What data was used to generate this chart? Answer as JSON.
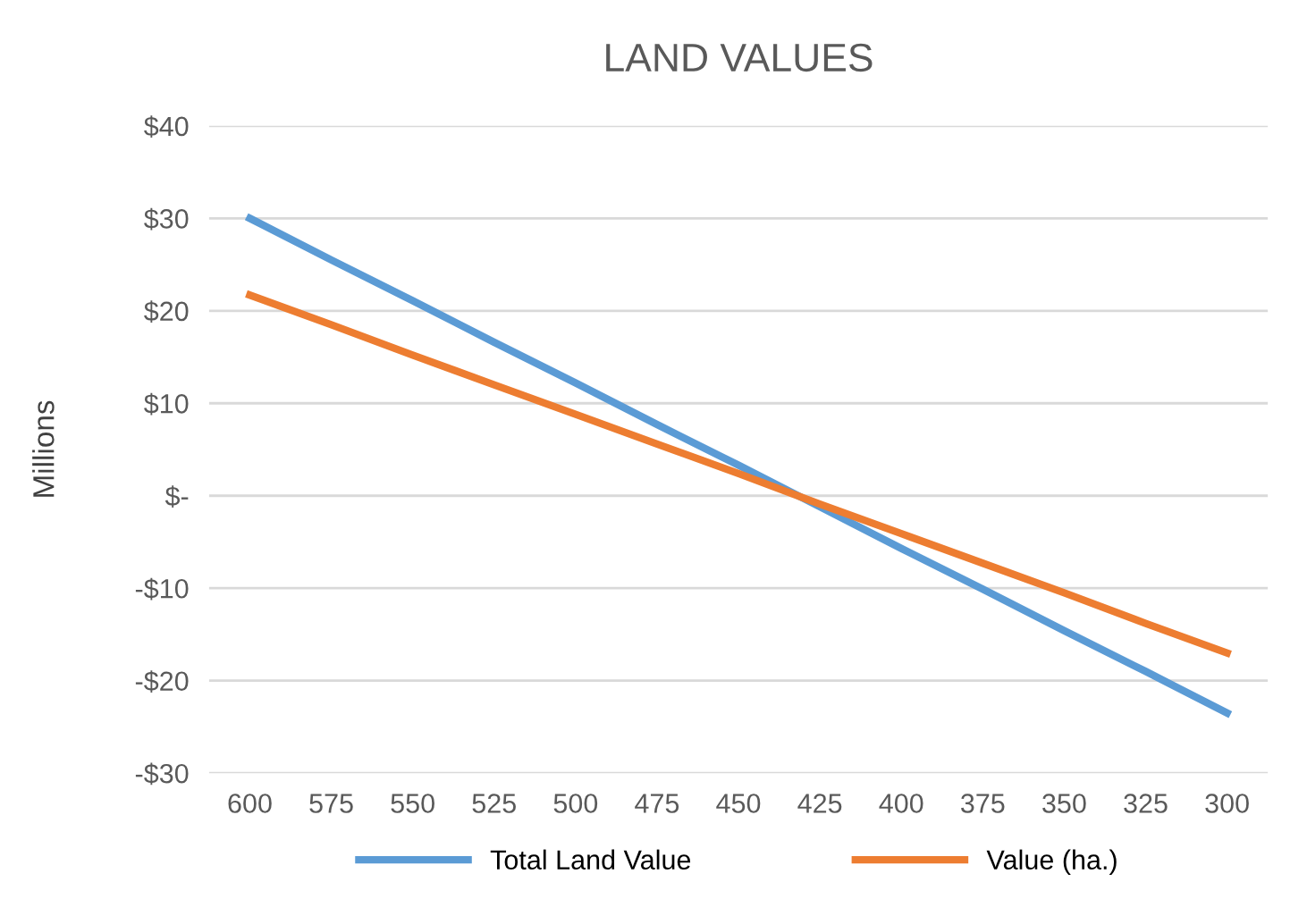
{
  "chart_data": {
    "type": "line",
    "title": "LAND VALUES",
    "ylabel": "Millions",
    "categories": [
      "600",
      "575",
      "550",
      "525",
      "500",
      "475",
      "450",
      "425",
      "400",
      "375",
      "350",
      "325",
      "300"
    ],
    "series": [
      {
        "name": "Total Land Value",
        "color": "#5b9bd5",
        "values": [
          30,
          25.5,
          21.1,
          16.6,
          12.2,
          7.7,
          3.3,
          -1.2,
          -5.7,
          -10.1,
          -14.6,
          -19.0,
          -23.5
        ]
      },
      {
        "name": "Value (ha.)",
        "color": "#ed7d31",
        "values": [
          21.7,
          18.5,
          15.2,
          12.0,
          8.8,
          5.6,
          2.4,
          -0.9,
          -4.1,
          -7.3,
          -10.5,
          -13.8,
          -17.0
        ]
      }
    ],
    "ylim": [
      -30,
      40
    ],
    "yticks": [
      {
        "value": -30,
        "label": "-$30"
      },
      {
        "value": -20,
        "label": "-$20"
      },
      {
        "value": -10,
        "label": "-$10"
      },
      {
        "value": 0,
        "label": "$-"
      },
      {
        "value": 10,
        "label": "$10"
      },
      {
        "value": 20,
        "label": "$20"
      },
      {
        "value": 30,
        "label": "$30"
      },
      {
        "value": 40,
        "label": "$40"
      }
    ],
    "grid": "y",
    "legend": "bottom",
    "marker": "none",
    "line_style": "solid"
  }
}
